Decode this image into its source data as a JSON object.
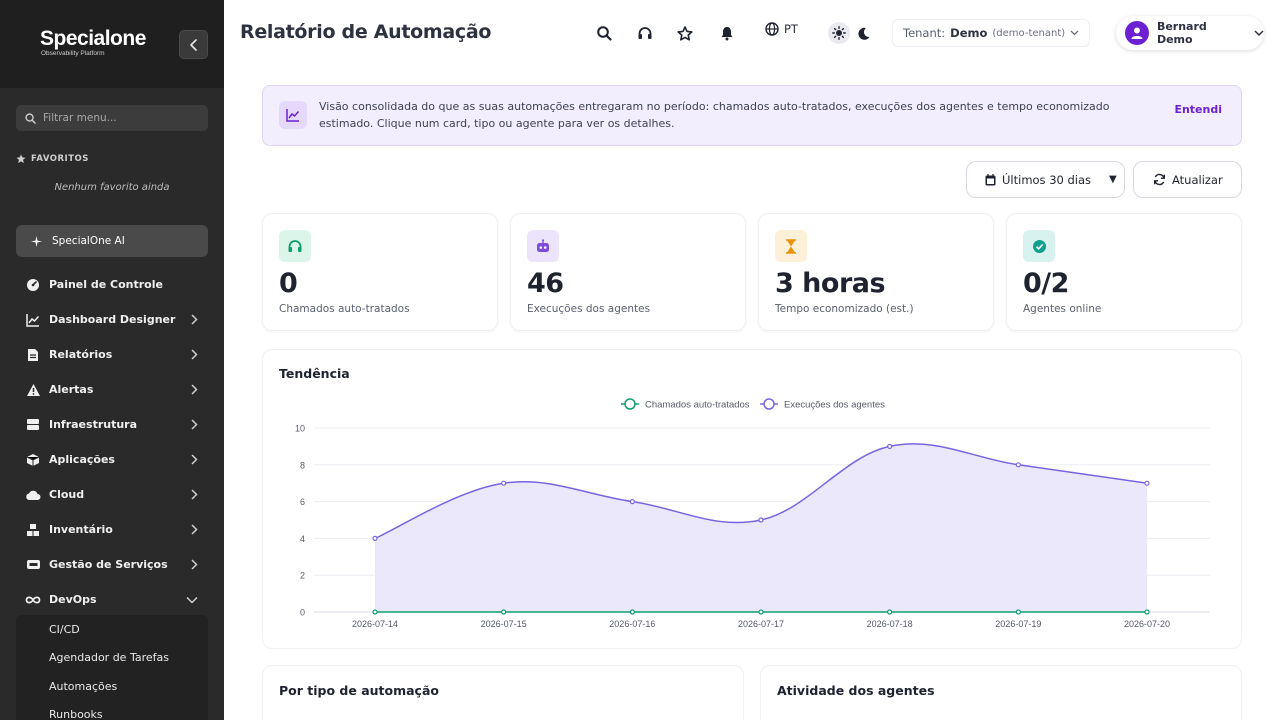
{
  "sidebar": {
    "logo_main": "Specialone",
    "logo_sub": "Observability Platform",
    "search_placeholder": "Filtrar menu...",
    "favorites_heading": "FAVORITOS",
    "favorites_empty": "Nenhum favorito ainda",
    "ai_label": "SpecialOne AI",
    "items": [
      {
        "label": "Painel de Controle",
        "icon": "dashboard-gauge-icon",
        "chevron": ""
      },
      {
        "label": "Dashboard Designer",
        "icon": "line-chart-icon",
        "chevron": "right"
      },
      {
        "label": "Relatórios",
        "icon": "document-icon",
        "chevron": "right"
      },
      {
        "label": "Alertas",
        "icon": "warning-icon",
        "chevron": "right"
      },
      {
        "label": "Infraestrutura",
        "icon": "server-icon",
        "chevron": "right"
      },
      {
        "label": "Aplicações",
        "icon": "cube-icon",
        "chevron": "right"
      },
      {
        "label": "Cloud",
        "icon": "cloud-icon",
        "chevron": "right"
      },
      {
        "label": "Inventário",
        "icon": "boxes-icon",
        "chevron": "right"
      },
      {
        "label": "Gestão de Serviços",
        "icon": "service-icon",
        "chevron": "right"
      },
      {
        "label": "DevOps",
        "icon": "infinity-icon",
        "chevron": "down"
      }
    ],
    "subitems": [
      "CI/CD",
      "Agendador de Tarefas",
      "Automações",
      "Runbooks"
    ]
  },
  "header": {
    "title": "Relatório de Automação",
    "language": "PT",
    "tenant_label": "Tenant:",
    "tenant_name": "Demo",
    "tenant_id": "(demo-tenant)",
    "user_name": "Bernard Demo"
  },
  "banner": {
    "text": "Visão consolidada do que as suas automações entregaram no período: chamados auto-tratados, execuções dos agentes e tempo economizado estimado. Clique num card, tipo ou agente para ver os detalhes.",
    "action": "Entendi"
  },
  "toolbar": {
    "range_label": "Últimos 30 dias",
    "refresh_label": "Atualizar"
  },
  "kpis": [
    {
      "value": "0",
      "label": "Chamados auto-tratados",
      "icon": "headset-icon",
      "color": "#0f9f6e",
      "bg": "#dcf5ea"
    },
    {
      "value": "46",
      "label": "Execuções dos agentes",
      "icon": "robot-icon",
      "color": "#7c4ddb",
      "bg": "#ece4fb"
    },
    {
      "value": "3 horas",
      "label": "Tempo economizado (est.)",
      "icon": "hourglass-icon",
      "color": "#e8940c",
      "bg": "#fdf0d9"
    },
    {
      "value": "0/2",
      "label": "Agentes online",
      "icon": "check-circle-icon",
      "color": "#0f9f8e",
      "bg": "#d8f3ef"
    }
  ],
  "trend": {
    "title": "Tendência"
  },
  "chart_data": {
    "type": "line",
    "x": [
      "2026-07-14",
      "2026-07-15",
      "2026-07-16",
      "2026-07-17",
      "2026-07-18",
      "2026-07-19",
      "2026-07-20"
    ],
    "series": [
      {
        "name": "Chamados auto-tratados",
        "values": [
          0,
          0,
          0,
          0,
          0,
          0,
          0
        ],
        "color": "#0f9f6e"
      },
      {
        "name": "Execuções dos agentes",
        "values": [
          4,
          7,
          6,
          5,
          9,
          8,
          7
        ],
        "color": "#7b63e0"
      }
    ],
    "ylim": [
      0,
      10
    ],
    "yticks": [
      0,
      2,
      4,
      6,
      8,
      10
    ],
    "legend": "top-center",
    "grid": true
  },
  "panels": {
    "by_type": "Por tipo de automação",
    "agents": "Atividade dos agentes"
  },
  "colors": {
    "accent": "#6d1fd2",
    "sidebar_bg": "#2a2a2a"
  }
}
